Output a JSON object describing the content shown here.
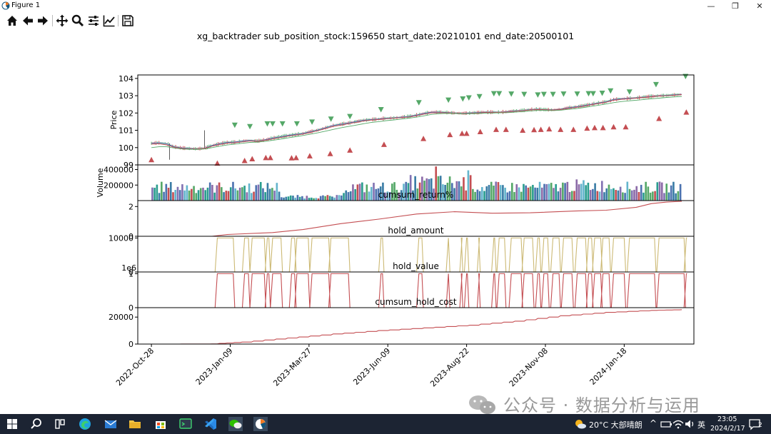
{
  "window": {
    "title": "Figure 1",
    "minimize": "—",
    "restore": "❐",
    "close": "✕"
  },
  "toolbar": {
    "tools": [
      {
        "name": "home-icon"
      },
      {
        "name": "back-arrow-icon"
      },
      {
        "name": "forward-arrow-icon"
      },
      {
        "name": "pan-move-icon"
      },
      {
        "name": "zoom-magnifier-icon"
      },
      {
        "name": "subplots-config-icon"
      },
      {
        "name": "edit-axes-icon"
      },
      {
        "name": "save-floppy-icon"
      }
    ]
  },
  "figure_title": "xg_backtrader sub_position_stock:159650 start_date:20210101 end_date:20500101",
  "chart_data": [
    {
      "type": "line",
      "panel": "price",
      "ylabel": "Price",
      "ylim": [
        99,
        104.2
      ],
      "yticks": [
        "99",
        "100",
        "101",
        "102",
        "103",
        "104"
      ],
      "x": [
        0,
        10,
        20,
        30,
        40,
        50,
        60,
        70,
        80,
        90,
        100,
        110,
        120,
        130,
        140,
        150,
        160,
        170,
        180,
        190,
        200,
        210,
        220,
        230,
        240,
        250,
        260,
        270,
        280,
        290,
        300,
        310,
        320,
        330,
        340,
        350,
        360,
        370,
        380,
        390,
        400,
        410,
        420,
        430,
        440,
        450,
        460,
        470,
        480,
        490,
        500,
        510,
        520,
        530,
        540,
        550,
        560,
        570,
        580,
        590,
        600,
        610,
        620,
        630,
        640,
        650,
        660,
        670,
        680,
        690,
        700
      ],
      "series": [
        {
          "name": "close",
          "values": [
            100.25,
            100.28,
            100.22,
            100.05,
            99.98,
            99.95,
            99.93,
            99.96,
            100.12,
            100.22,
            100.3,
            100.32,
            100.38,
            100.42,
            100.38,
            100.45,
            100.55,
            100.62,
            100.7,
            100.76,
            100.82,
            100.92,
            101.02,
            101.15,
            101.28,
            101.35,
            101.42,
            101.5,
            101.58,
            101.62,
            101.65,
            101.7,
            101.72,
            101.76,
            101.8,
            101.88,
            101.98,
            102.05,
            102.05,
            102.03,
            102.0,
            101.98,
            102.0,
            102.02,
            102.05,
            102.05,
            102.05,
            102.08,
            102.12,
            102.15,
            102.2,
            102.22,
            102.2,
            102.18,
            102.22,
            102.3,
            102.35,
            102.42,
            102.5,
            102.58,
            102.65,
            102.78,
            102.82,
            102.85,
            102.88,
            102.92,
            102.96,
            103.0,
            103.02,
            103.05,
            103.08
          ]
        },
        {
          "name": "ma_short",
          "values": [
            100.2,
            100.22,
            100.15,
            100.02,
            99.95,
            99.92,
            99.92,
            99.95,
            100.08,
            100.18,
            100.25,
            100.28,
            100.33,
            100.38,
            100.36,
            100.42,
            100.5,
            100.58,
            100.66,
            100.72,
            100.78,
            100.88,
            100.98,
            101.1,
            101.22,
            101.3,
            101.38,
            101.46,
            101.54,
            101.59,
            101.62,
            101.67,
            101.7,
            101.73,
            101.77,
            101.84,
            101.94,
            102.01,
            102.02,
            102.01,
            101.99,
            101.97,
            101.98,
            102.0,
            102.03,
            102.03,
            102.04,
            102.06,
            102.1,
            102.13,
            102.18,
            102.2,
            102.19,
            102.17,
            102.2,
            102.27,
            102.32,
            102.39,
            102.47,
            102.55,
            102.62,
            102.74,
            102.79,
            102.82,
            102.86,
            102.9,
            102.94,
            102.98,
            103.0,
            103.03,
            103.06
          ]
        },
        {
          "name": "ma_long",
          "values": [
            100.0,
            100.05,
            100.05,
            99.98,
            99.92,
            99.9,
            99.9,
            99.92,
            100.0,
            100.08,
            100.15,
            100.2,
            100.25,
            100.3,
            100.32,
            100.36,
            100.42,
            100.48,
            100.56,
            100.63,
            100.7,
            100.78,
            100.86,
            100.95,
            101.05,
            101.14,
            101.22,
            101.3,
            101.38,
            101.45,
            101.5,
            101.56,
            101.6,
            101.65,
            101.7,
            101.76,
            101.84,
            101.92,
            101.96,
            101.98,
            101.97,
            101.96,
            101.96,
            101.97,
            101.99,
            102.0,
            102.01,
            102.02,
            102.05,
            102.08,
            102.12,
            102.15,
            102.15,
            102.14,
            102.16,
            102.21,
            102.25,
            102.31,
            102.38,
            102.45,
            102.52,
            102.6,
            102.66,
            102.7,
            102.74,
            102.78,
            102.82,
            102.86,
            102.9,
            102.93,
            102.96
          ]
        }
      ],
      "buy_markers": [
        [
          0,
          99.3
        ],
        [
          87,
          99.1
        ],
        [
          123,
          99.25
        ],
        [
          133,
          99.35
        ],
        [
          151,
          99.42
        ],
        [
          157,
          99.42
        ],
        [
          185,
          99.4
        ],
        [
          191,
          99.42
        ],
        [
          209,
          99.52
        ],
        [
          236,
          99.65
        ],
        [
          262,
          99.85
        ],
        [
          307,
          100.18
        ],
        [
          359,
          100.52
        ],
        [
          394,
          100.75
        ],
        [
          410,
          100.82
        ],
        [
          416,
          100.82
        ],
        [
          434,
          100.92
        ],
        [
          455,
          101.05
        ],
        [
          468,
          101.05
        ],
        [
          490,
          101.0
        ],
        [
          505,
          101.03
        ],
        [
          514,
          101.05
        ],
        [
          525,
          101.08
        ],
        [
          540,
          101.05
        ],
        [
          557,
          101.05
        ],
        [
          575,
          101.12
        ],
        [
          585,
          101.15
        ],
        [
          596,
          101.15
        ],
        [
          610,
          101.2
        ],
        [
          626,
          101.2
        ],
        [
          670,
          101.68
        ],
        [
          706,
          102.05
        ]
      ],
      "sell_markers": [
        [
          110,
          101.3
        ],
        [
          130,
          101.22
        ],
        [
          153,
          101.38
        ],
        [
          160,
          101.38
        ],
        [
          173,
          101.38
        ],
        [
          192,
          101.38
        ],
        [
          212,
          101.48
        ],
        [
          237,
          101.65
        ],
        [
          262,
          101.8
        ],
        [
          303,
          102.2
        ],
        [
          353,
          102.6
        ],
        [
          392,
          102.75
        ],
        [
          411,
          102.82
        ],
        [
          419,
          102.88
        ],
        [
          433,
          102.95
        ],
        [
          452,
          103.12
        ],
        [
          459,
          103.12
        ],
        [
          475,
          103.1
        ],
        [
          492,
          103.08
        ],
        [
          510,
          103.05
        ],
        [
          518,
          103.08
        ],
        [
          530,
          103.08
        ],
        [
          544,
          103.1
        ],
        [
          562,
          103.1
        ],
        [
          577,
          103.12
        ],
        [
          583,
          103.12
        ],
        [
          595,
          103.15
        ],
        [
          606,
          103.28
        ],
        [
          631,
          103.22
        ],
        [
          666,
          103.65
        ],
        [
          705,
          104.12
        ]
      ]
    },
    {
      "type": "bar",
      "panel": "volume",
      "ylabel": "Volume",
      "ylim": [
        0,
        460000
      ],
      "yticks": [
        "200000",
        "400000"
      ],
      "n_bars": 230
    },
    {
      "type": "line",
      "panel": "cumsum_return%",
      "title": "cumsum_return%",
      "ylim": [
        0,
        2.4
      ],
      "yticks": [
        "0",
        "2"
      ],
      "x": [
        0,
        80,
        100,
        160,
        200,
        250,
        300,
        350,
        400,
        450,
        500,
        560,
        600,
        640,
        660,
        680,
        700
      ],
      "values": [
        0,
        0,
        0.12,
        0.25,
        0.45,
        0.85,
        1.15,
        1.5,
        1.65,
        1.55,
        1.58,
        1.7,
        1.75,
        1.95,
        2.2,
        2.3,
        2.35
      ]
    },
    {
      "type": "line",
      "panel": "hold_amount",
      "title": "hold_amount",
      "ylim": [
        0,
        10500
      ],
      "yticks": [
        "0",
        "10000"
      ],
      "levels": [
        0,
        10000
      ]
    },
    {
      "type": "line",
      "panel": "hold_value",
      "title": "hold_value",
      "offset_label": "1e6",
      "ylim": [
        0,
        1.05
      ],
      "yticks": [
        "0",
        "1"
      ],
      "levels": [
        0,
        1
      ]
    },
    {
      "type": "line",
      "panel": "cumsum_hold_cost",
      "title": "cumsum_hold_cost",
      "ylim": [
        0,
        27000
      ],
      "yticks": [
        "0",
        "20000"
      ],
      "x": [
        0,
        80,
        120,
        180,
        240,
        300,
        360,
        420,
        480,
        540,
        600,
        660,
        700
      ],
      "values": [
        0,
        100,
        1500,
        4500,
        7500,
        10000,
        12000,
        14000,
        17000,
        21000,
        23500,
        25000,
        25500
      ]
    }
  ],
  "x_axis": {
    "type": "date",
    "tick_labels": [
      "2022-Oct-28",
      "2023-Jan-09",
      "2023-Mar-27",
      "2023-Jun-09",
      "2023-Aug-22",
      "2023-Nov-08",
      "2024-Jan-18"
    ],
    "tick_positions": [
      0,
      104,
      208,
      312,
      416,
      520,
      624
    ]
  },
  "colors": {
    "up": "#55a868",
    "down": "#c44e52",
    "close_line": "#4c72b0",
    "ma_long": "#55a868",
    "amount": "#ccb974",
    "value": "#c44e52"
  },
  "watermark": {
    "text": "公众号 · 数据分析与运用"
  },
  "taskbar": {
    "weather": "20°C  大部晴朗",
    "ime": "英",
    "time": "23:05",
    "date": "2024/2/17",
    "notifications": "2"
  }
}
